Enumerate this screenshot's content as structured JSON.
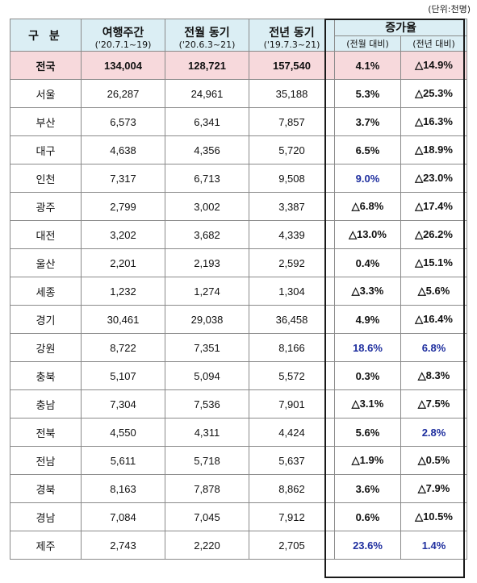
{
  "unit_label": "(단위:천명)",
  "header": {
    "gubun": "구 분",
    "col1_title": "여행주간",
    "col1_period": "('20.7.1~19)",
    "col2_title": "전월 동기",
    "col2_period": "('20.6.3~21)",
    "col3_title": "전년 동기",
    "col3_period": "('19.7.3~21)",
    "rate_title": "증가율",
    "rate_mom": "(전월 대비)",
    "rate_yoy": "(전년 대비)"
  },
  "rows": [
    {
      "region": "전국",
      "travel_week": "134,004",
      "prev_month": "128,721",
      "prev_year": "157,540",
      "mom": "4.1%",
      "yoy": "△14.9%",
      "total": true
    },
    {
      "region": "서울",
      "travel_week": "26,287",
      "prev_month": "24,961",
      "prev_year": "35,188",
      "mom": "5.3%",
      "yoy": "△25.3%"
    },
    {
      "region": "부산",
      "travel_week": "6,573",
      "prev_month": "6,341",
      "prev_year": "7,857",
      "mom": "3.7%",
      "yoy": "△16.3%"
    },
    {
      "region": "대구",
      "travel_week": "4,638",
      "prev_month": "4,356",
      "prev_year": "5,720",
      "mom": "6.5%",
      "yoy": "△18.9%"
    },
    {
      "region": "인천",
      "travel_week": "7,317",
      "prev_month": "6,713",
      "prev_year": "9,508",
      "mom": "9.0%",
      "yoy": "△23.0%",
      "mom_highlight": true
    },
    {
      "region": "광주",
      "travel_week": "2,799",
      "prev_month": "3,002",
      "prev_year": "3,387",
      "mom": "△6.8%",
      "yoy": "△17.4%"
    },
    {
      "region": "대전",
      "travel_week": "3,202",
      "prev_month": "3,682",
      "prev_year": "4,339",
      "mom": "△13.0%",
      "yoy": "△26.2%"
    },
    {
      "region": "울산",
      "travel_week": "2,201",
      "prev_month": "2,193",
      "prev_year": "2,592",
      "mom": "0.4%",
      "yoy": "△15.1%"
    },
    {
      "region": "세종",
      "travel_week": "1,232",
      "prev_month": "1,274",
      "prev_year": "1,304",
      "mom": "△3.3%",
      "yoy": "△5.6%"
    },
    {
      "region": "경기",
      "travel_week": "30,461",
      "prev_month": "29,038",
      "prev_year": "36,458",
      "mom": "4.9%",
      "yoy": "△16.4%"
    },
    {
      "region": "강원",
      "travel_week": "8,722",
      "prev_month": "7,351",
      "prev_year": "8,166",
      "mom": "18.6%",
      "yoy": "6.8%",
      "mom_highlight": true,
      "yoy_highlight": true
    },
    {
      "region": "충북",
      "travel_week": "5,107",
      "prev_month": "5,094",
      "prev_year": "5,572",
      "mom": "0.3%",
      "yoy": "△8.3%"
    },
    {
      "region": "충남",
      "travel_week": "7,304",
      "prev_month": "7,536",
      "prev_year": "7,901",
      "mom": "△3.1%",
      "yoy": "△7.5%"
    },
    {
      "region": "전북",
      "travel_week": "4,550",
      "prev_month": "4,311",
      "prev_year": "4,424",
      "mom": "5.6%",
      "yoy": "2.8%",
      "yoy_highlight": true
    },
    {
      "region": "전남",
      "travel_week": "5,611",
      "prev_month": "5,718",
      "prev_year": "5,637",
      "mom": "△1.9%",
      "yoy": "△0.5%"
    },
    {
      "region": "경북",
      "travel_week": "8,163",
      "prev_month": "7,878",
      "prev_year": "8,862",
      "mom": "3.6%",
      "yoy": "△7.9%"
    },
    {
      "region": "경남",
      "travel_week": "7,084",
      "prev_month": "7,045",
      "prev_year": "7,912",
      "mom": "0.6%",
      "yoy": "△10.5%"
    },
    {
      "region": "제주",
      "travel_week": "2,743",
      "prev_month": "2,220",
      "prev_year": "2,705",
      "mom": "23.6%",
      "yoy": "1.4%",
      "mom_highlight": true,
      "yoy_highlight": true
    }
  ],
  "colors": {
    "header_bg": "#dbeef4",
    "total_row_bg": "#f7d9dc",
    "highlight_text": "#1f2f9f",
    "border": "#8a8a8a"
  }
}
